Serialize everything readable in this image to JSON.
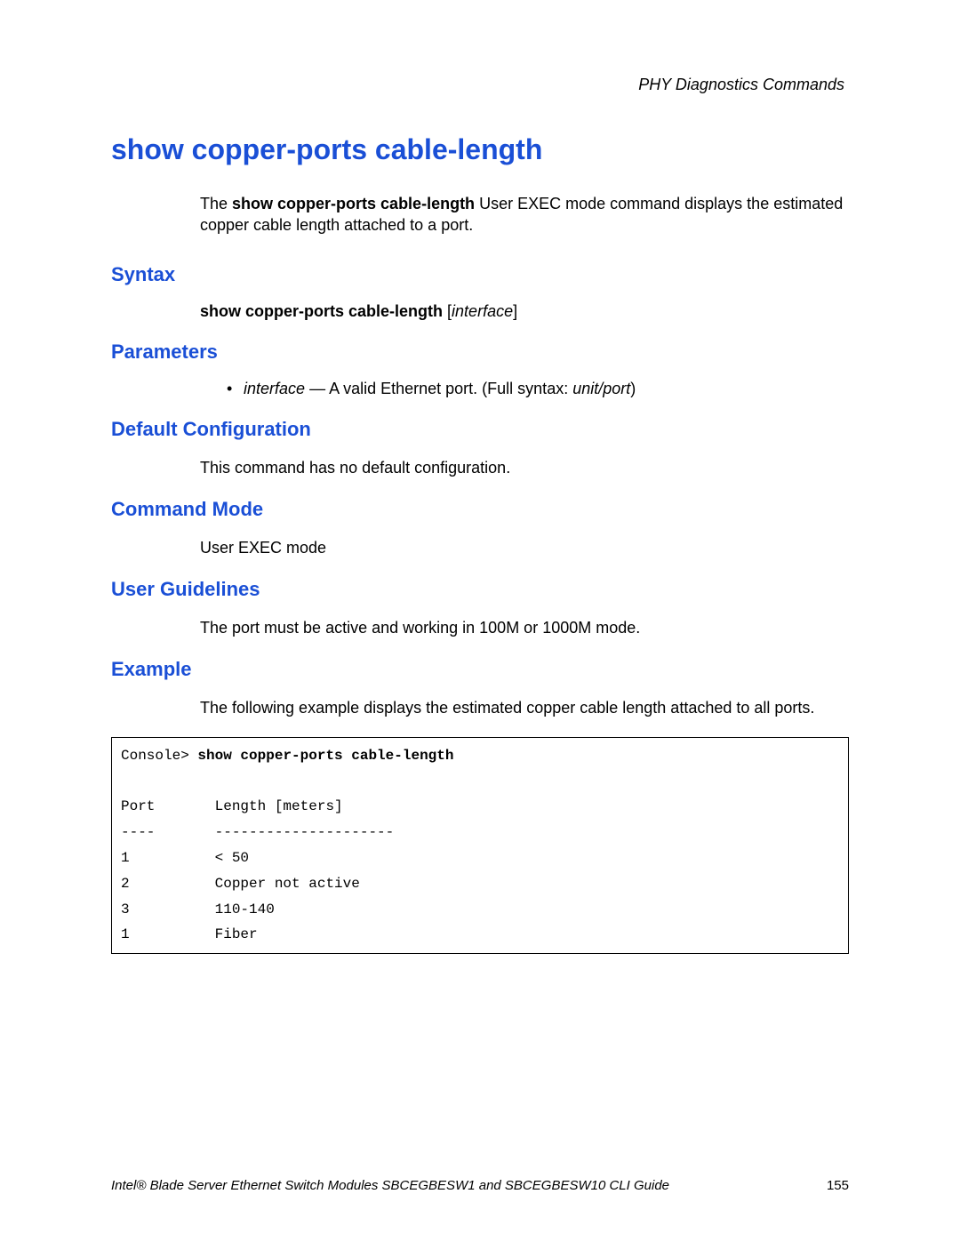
{
  "colors": {
    "heading_blue": "#1a4fd6",
    "text_black": "#000000",
    "background": "#ffffff",
    "border": "#000000"
  },
  "fonts": {
    "body_family": "Arial, Helvetica, sans-serif",
    "code_family": "Courier New, monospace",
    "title_size_pt": 24,
    "section_size_pt": 16,
    "body_size_pt": 13,
    "code_size_pt": 12
  },
  "header": {
    "section_title": "PHY Diagnostics Commands"
  },
  "title": "show copper-ports cable-length",
  "intro": {
    "prefix": "The ",
    "bold": "show copper-ports cable-length",
    "suffix": " User EXEC mode command displays the estimated copper cable length attached to a port."
  },
  "syntax": {
    "heading": "Syntax",
    "cmd_bold": "show copper-ports cable-length",
    "open_bracket": " [",
    "arg_italic": "interface",
    "close_bracket": "]"
  },
  "parameters": {
    "heading": "Parameters",
    "item": {
      "name": "interface",
      "dash": " — ",
      "desc_prefix": "A valid Ethernet port. (Full syntax: ",
      "desc_italic": "unit/port",
      "desc_suffix": ")"
    }
  },
  "default_config": {
    "heading": "Default Configuration",
    "text": "This command has no default configuration."
  },
  "command_mode": {
    "heading": "Command Mode",
    "text": "User EXEC mode"
  },
  "user_guidelines": {
    "heading": "User Guidelines",
    "text": "The port must be active and working in 100M or 1000M mode."
  },
  "example": {
    "heading": "Example",
    "text": "The following example displays the estimated copper cable length attached to all ports.",
    "code": {
      "prompt": "Console> ",
      "cmd_bold": "show copper-ports cable-length",
      "blank": "",
      "header_row": "Port       Length [meters]",
      "divider_row": "----       ---------------------",
      "rows": [
        "1          < 50",
        "2          Copper not active",
        "3          110-140",
        "1          Fiber"
      ]
    }
  },
  "footer": {
    "text": "Intel® Blade Server Ethernet Switch Modules SBCEGBESW1 and SBCEGBESW10 CLI Guide",
    "page": "155"
  }
}
